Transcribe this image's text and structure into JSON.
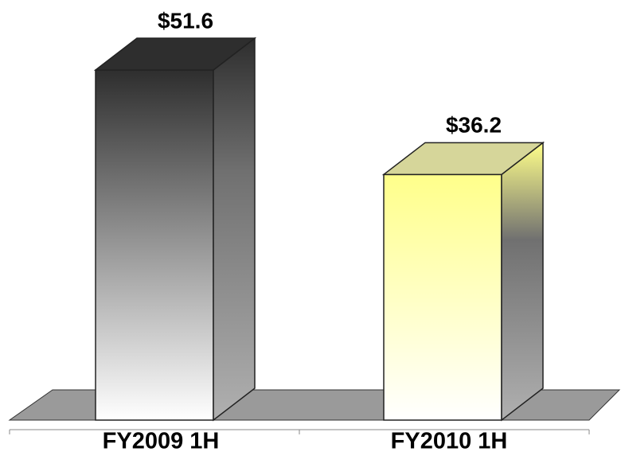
{
  "chart_data": {
    "type": "bar3d",
    "categories": [
      "FY2009 1H",
      "FY2010 1H"
    ],
    "values": [
      51.6,
      36.2
    ],
    "value_labels": [
      "$51.6",
      "$36.2"
    ],
    "colors": [
      "#2e2e2e",
      "#ffff8a"
    ]
  }
}
